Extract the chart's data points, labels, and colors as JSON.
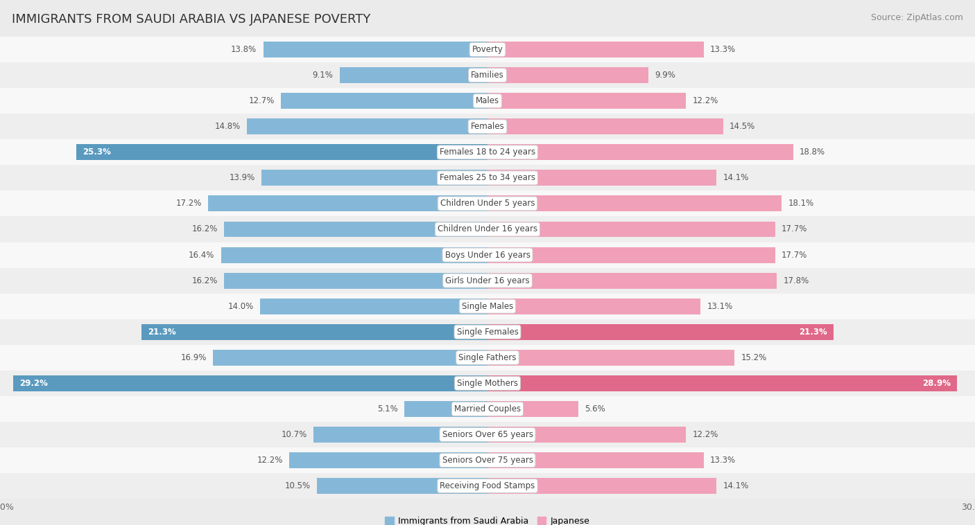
{
  "title": "IMMIGRANTS FROM SAUDI ARABIA VS JAPANESE POVERTY",
  "source": "Source: ZipAtlas.com",
  "categories": [
    "Poverty",
    "Families",
    "Males",
    "Females",
    "Females 18 to 24 years",
    "Females 25 to 34 years",
    "Children Under 5 years",
    "Children Under 16 years",
    "Boys Under 16 years",
    "Girls Under 16 years",
    "Single Males",
    "Single Females",
    "Single Fathers",
    "Single Mothers",
    "Married Couples",
    "Seniors Over 65 years",
    "Seniors Over 75 years",
    "Receiving Food Stamps"
  ],
  "saudi_values": [
    13.8,
    9.1,
    12.7,
    14.8,
    25.3,
    13.9,
    17.2,
    16.2,
    16.4,
    16.2,
    14.0,
    21.3,
    16.9,
    29.2,
    5.1,
    10.7,
    12.2,
    10.5
  ],
  "japanese_values": [
    13.3,
    9.9,
    12.2,
    14.5,
    18.8,
    14.1,
    18.1,
    17.7,
    17.7,
    17.8,
    13.1,
    21.3,
    15.2,
    28.9,
    5.6,
    12.2,
    13.3,
    14.1
  ],
  "saudi_color": "#85b8d8",
  "japanese_color": "#f0a0b8",
  "saudi_highlight_color": "#5a9abf",
  "japanese_highlight_color": "#e06888",
  "highlight_threshold": 20.0,
  "axis_limit": 30.0,
  "bg_color": "#ebebeb",
  "row_bg_even": "#f8f8f8",
  "row_bg_odd": "#eeeeee",
  "label_color": "#555555",
  "highlight_label_color": "#ffffff",
  "legend_label_saudi": "Immigrants from Saudi Arabia",
  "legend_label_japanese": "Japanese",
  "title_fontsize": 13,
  "source_fontsize": 9,
  "bar_height": 0.62,
  "value_fontsize": 8.5,
  "category_fontsize": 8.5
}
